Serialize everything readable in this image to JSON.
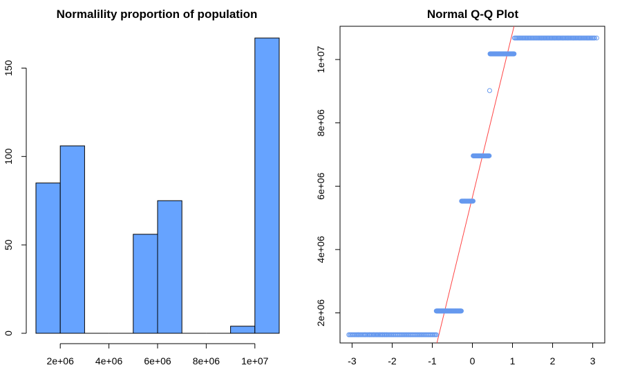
{
  "colors": {
    "bar_fill": "#66a3ff",
    "point_stroke": "#6699ee",
    "reference_line": "#ff4444",
    "axis": "#000000"
  },
  "chart_data": [
    {
      "type": "bar",
      "subtype": "histogram",
      "title": "Normalility proportion of population",
      "xlabel": "",
      "ylabel": "",
      "bins": [
        {
          "start": 1000000,
          "end": 2000000,
          "count": 85
        },
        {
          "start": 2000000,
          "end": 3000000,
          "count": 106
        },
        {
          "start": 3000000,
          "end": 4000000,
          "count": 0
        },
        {
          "start": 4000000,
          "end": 5000000,
          "count": 0
        },
        {
          "start": 5000000,
          "end": 6000000,
          "count": 56
        },
        {
          "start": 6000000,
          "end": 7000000,
          "count": 75
        },
        {
          "start": 7000000,
          "end": 8000000,
          "count": 0
        },
        {
          "start": 8000000,
          "end": 9000000,
          "count": 0
        },
        {
          "start": 9000000,
          "end": 10000000,
          "count": 4
        },
        {
          "start": 10000000,
          "end": 11000000,
          "count": 167
        }
      ],
      "x_ticks": [
        {
          "value": 2000000,
          "label": "2e+06"
        },
        {
          "value": 4000000,
          "label": "4e+06"
        },
        {
          "value": 6000000,
          "label": "6e+06"
        },
        {
          "value": 8000000,
          "label": "8e+06"
        },
        {
          "value": 10000000,
          "label": "1e+07"
        }
      ],
      "y_ticks": [
        {
          "value": 0,
          "label": "0"
        },
        {
          "value": 50,
          "label": "50"
        },
        {
          "value": 100,
          "label": "100"
        },
        {
          "value": 150,
          "label": "150"
        }
      ],
      "xlim": [
        1000000,
        11000000
      ],
      "ylim": [
        0,
        167
      ],
      "grid": false,
      "legend": "none"
    },
    {
      "type": "scatter",
      "subtype": "qq-plot",
      "title": "Normal Q-Q Plot",
      "xlabel": "",
      "ylabel": "",
      "clusters": [
        {
          "y": 1310000,
          "x_from": -3.05,
          "x_to": -0.9,
          "n": 85,
          "isolated": [
            -3.08,
            -2.85,
            -2.68,
            -2.56,
            -2.46,
            -2.38,
            -2.31,
            -2.25,
            -2.19,
            -2.14
          ]
        },
        {
          "y": 2060000,
          "x_from": -0.9,
          "x_to": -0.27,
          "n": 106,
          "isolated": []
        },
        {
          "y": 5530000,
          "x_from": -0.27,
          "x_to": 0.02,
          "n": 56,
          "isolated": []
        },
        {
          "y": 6960000,
          "x_from": 0.02,
          "x_to": 0.42,
          "n": 75,
          "isolated": []
        },
        {
          "y": 9020000,
          "x_from": 0.43,
          "x_to": 0.43,
          "n": 1,
          "isolated": []
        },
        {
          "y": 10180000,
          "x_from": 0.44,
          "x_to": 1.04,
          "n": 84,
          "isolated": []
        },
        {
          "y": 10680000,
          "x_from": 1.05,
          "x_to": 3.05,
          "n": 86,
          "isolated": [
            1.72,
            1.8,
            1.88,
            1.96,
            2.05,
            2.15,
            2.26,
            2.38,
            2.52,
            2.68,
            2.88,
            3.1
          ]
        }
      ],
      "reference_line": {
        "slope": 5200000,
        "intercept": 5650000
      },
      "x_ticks": [
        {
          "value": -3,
          "label": "-3"
        },
        {
          "value": -2,
          "label": "-2"
        },
        {
          "value": -1,
          "label": "-1"
        },
        {
          "value": 0,
          "label": "0"
        },
        {
          "value": 1,
          "label": "1"
        },
        {
          "value": 2,
          "label": "2"
        },
        {
          "value": 3,
          "label": "3"
        }
      ],
      "y_ticks": [
        {
          "value": 2000000,
          "label": "2e+06"
        },
        {
          "value": 4000000,
          "label": "4e+06"
        },
        {
          "value": 6000000,
          "label": "6e+06"
        },
        {
          "value": 8000000,
          "label": "8e+06"
        },
        {
          "value": 10000000,
          "label": "1e+07"
        }
      ],
      "xlim": [
        -3.3,
        3.3
      ],
      "ylim": [
        1050000,
        11050000
      ],
      "grid": false,
      "legend": "none"
    }
  ]
}
